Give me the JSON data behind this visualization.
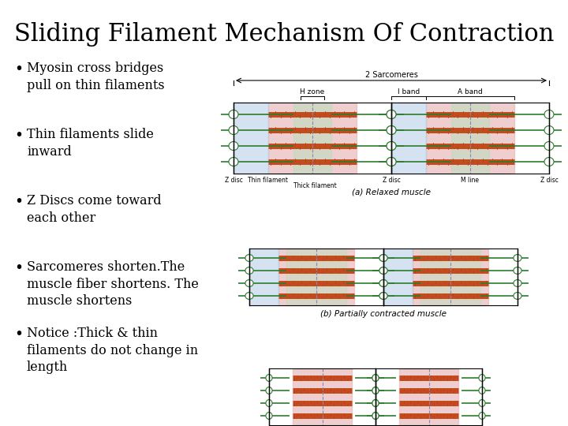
{
  "title": "Sliding Filament Mechanism Of Contraction",
  "title_fontsize": 22,
  "background_color": "#ffffff",
  "text_color": "#000000",
  "bullet_points": [
    "Myosin cross bridges\npull on thin filaments",
    "Thin filaments slide\ninward",
    "Z Discs come toward\neach other",
    "Sarcomeres shorten.The\nmuscle fiber shortens. The\nmuscle shortens",
    "Notice :Thick & thin\nfilaments do not change in\nlength"
  ],
  "bullet_fontsize": 11.5,
  "green_color": "#2d7a2d",
  "red_color": "#c04010",
  "blue_highlight": "#b8cfe8",
  "green_highlight": "#c0dcc0",
  "pink_highlight": "#e8baba",
  "gray_color": "#8888aa"
}
